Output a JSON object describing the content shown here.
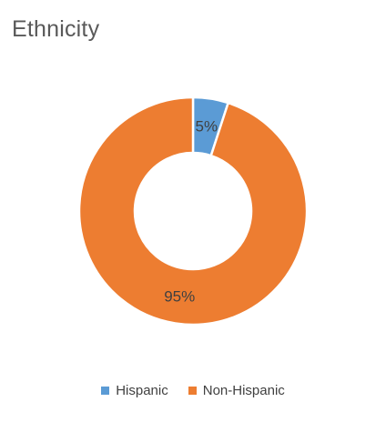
{
  "chart_data": {
    "type": "pie",
    "variant": "doughnut",
    "title": "Ethnicity",
    "categories": [
      "Hispanic",
      "Non-Hispanic"
    ],
    "values": [
      5,
      95
    ],
    "data_labels": [
      "5%",
      "95%"
    ],
    "colors": [
      "#5B9BD5",
      "#ED7D31"
    ],
    "legend_position": "bottom"
  }
}
